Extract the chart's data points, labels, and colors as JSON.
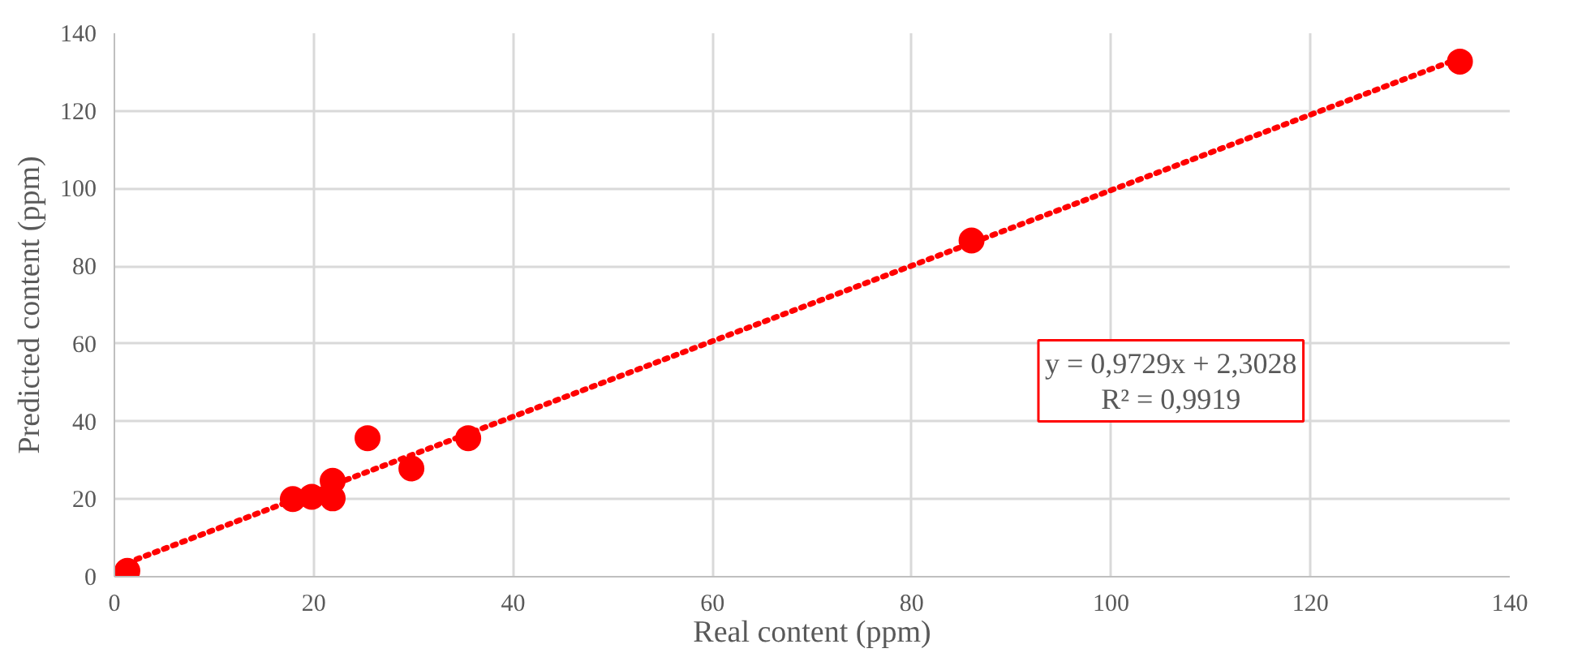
{
  "chart_data": {
    "type": "scatter",
    "xlabel": "Real content (ppm)",
    "ylabel": "Predicted content (ppm)",
    "xlim": [
      0,
      140
    ],
    "ylim": [
      0,
      140
    ],
    "xticks": [
      0,
      20,
      40,
      60,
      80,
      100,
      120,
      140
    ],
    "yticks": [
      0,
      20,
      40,
      60,
      80,
      100,
      120,
      140
    ],
    "grid": true,
    "marker": "circle",
    "series": [
      {
        "color": "#ff0000",
        "x": [
          1.3,
          17.9,
          19.8,
          21.9,
          21.9,
          25.4,
          29.8,
          35.5,
          86.0,
          135.0
        ],
        "values": [
          1.5,
          20.0,
          20.6,
          24.7,
          20.2,
          35.7,
          27.9,
          35.7,
          86.6,
          132.7
        ]
      },
      {
        "type": "line",
        "color": "#ff0000",
        "line_style": "dotted",
        "marker": "none",
        "x": [
          1.3,
          135.0
        ],
        "values": [
          3.6,
          133.6
        ]
      }
    ],
    "annotations": [
      "y = 0,9729x + 2,3028",
      "R² = 0,9919"
    ]
  }
}
